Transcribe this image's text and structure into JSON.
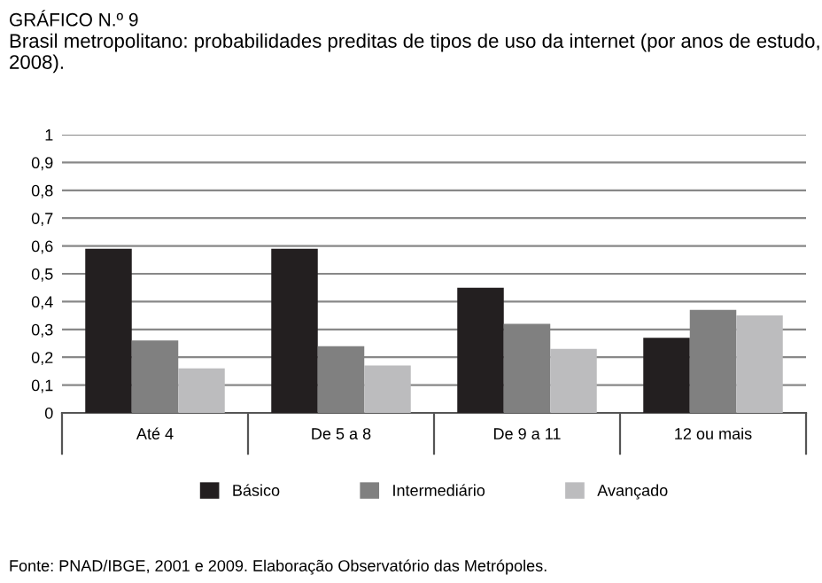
{
  "chart_data": {
    "type": "bar",
    "title": "GRÁFICO N.º 9",
    "subtitle": "Brasil metropolitano: probabilidades preditas de tipos de uso da internet (por anos de estudo, 2008).",
    "categories": [
      "Até 4",
      "De 5 a 8",
      "De 9 a 11",
      "12 ou mais"
    ],
    "series": [
      {
        "name": "Básico",
        "color": "#231f20",
        "values": [
          0.59,
          0.59,
          0.45,
          0.27
        ]
      },
      {
        "name": "Intermediário",
        "color": "#808080",
        "values": [
          0.26,
          0.24,
          0.32,
          0.37
        ]
      },
      {
        "name": "Avançado",
        "color": "#bcbcbe",
        "values": [
          0.16,
          0.17,
          0.23,
          0.35
        ]
      }
    ],
    "ylim": [
      0,
      1
    ],
    "yticks": [
      0,
      {
        "value": 0.1,
        "label": "0,1"
      },
      {
        "value": 0.2,
        "label": "0,2"
      },
      {
        "value": 0.3,
        "label": "0,3"
      },
      {
        "value": 0.4,
        "label": "0,4"
      },
      {
        "value": 0.5,
        "label": "0,5"
      },
      {
        "value": 0.6,
        "label": "0,6"
      },
      {
        "value": 0.7,
        "label": "0,7"
      },
      {
        "value": 0.8,
        "label": "0,8"
      },
      {
        "value": 0.9,
        "label": "0,9"
      },
      1
    ],
    "grid": "y",
    "legend": "bottom",
    "annotations": [
      "Fonte: PNAD/IBGE, 2001 e 2009. Elaboração Observatório das Metrópoles."
    ]
  }
}
